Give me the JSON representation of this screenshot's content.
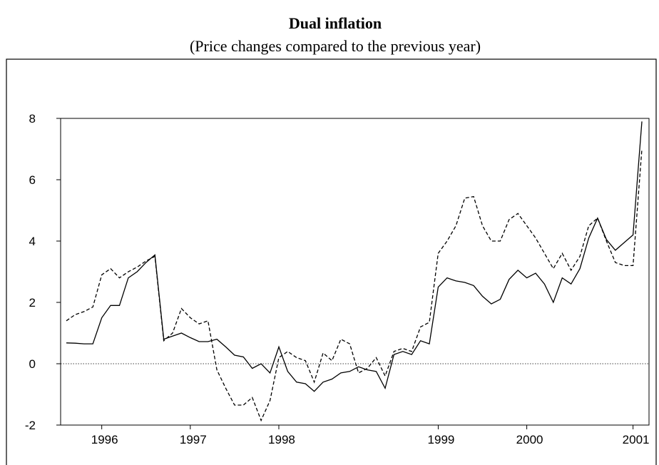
{
  "chart_data": {
    "type": "line",
    "title": "Dual inflation",
    "subtitle": "(Price changes compared to the previous year)",
    "categories": [
      null,
      null,
      null,
      null,
      "1996",
      null,
      null,
      null,
      null,
      null,
      null,
      null,
      null,
      null,
      "1997",
      null,
      null,
      null,
      null,
      null,
      null,
      null,
      null,
      null,
      "1998",
      null,
      null,
      null,
      null,
      null,
      null,
      null,
      null,
      null,
      null,
      null,
      null,
      null,
      null,
      null,
      null,
      null,
      "1999",
      null,
      null,
      null,
      null,
      null,
      null,
      null,
      null,
      null,
      "2000",
      null,
      null,
      null,
      null,
      null,
      null,
      null,
      null,
      null,
      null,
      null,
      "2001",
      null
    ],
    "series": [
      {
        "color": "#000000",
        "dashed": false,
        "values": [
          0.68,
          0.67,
          0.65,
          0.65,
          1.5,
          1.9,
          1.9,
          2.8,
          3.0,
          3.3,
          3.55,
          0.8,
          0.9,
          1.0,
          0.85,
          0.72,
          0.72,
          0.8,
          0.55,
          0.28,
          0.22,
          -0.15,
          0.0,
          -0.3,
          0.55,
          -0.25,
          -0.6,
          -0.65,
          -0.9,
          -0.6,
          -0.5,
          -0.3,
          -0.25,
          -0.1,
          -0.2,
          -0.25,
          -0.8,
          0.3,
          0.4,
          0.3,
          0.75,
          0.65,
          2.5,
          2.8,
          2.7,
          2.65,
          2.55,
          2.2,
          1.95,
          2.1,
          2.75,
          3.05,
          2.8,
          2.95,
          2.6,
          2.0,
          2.8,
          2.6,
          3.1,
          4.1,
          4.75,
          4.05,
          3.7,
          3.95,
          4.2,
          7.9
        ]
      },
      {
        "color": "#000000",
        "dashed": true,
        "values": [
          1.4,
          1.6,
          1.7,
          1.85,
          2.9,
          3.1,
          2.8,
          3.0,
          3.15,
          3.35,
          3.5,
          0.75,
          1.0,
          1.8,
          1.5,
          1.3,
          1.4,
          -0.2,
          -0.8,
          -1.35,
          -1.35,
          -1.1,
          -1.85,
          -1.2,
          0.2,
          0.4,
          0.2,
          0.1,
          -0.6,
          0.35,
          0.1,
          0.8,
          0.65,
          -0.3,
          -0.15,
          0.2,
          -0.4,
          0.4,
          0.5,
          0.4,
          1.2,
          1.35,
          3.6,
          4.0,
          4.5,
          5.4,
          5.45,
          4.5,
          4.0,
          4.0,
          4.7,
          4.9,
          4.5,
          4.1,
          3.6,
          3.1,
          3.6,
          3.05,
          3.5,
          4.5,
          4.75,
          4.0,
          3.3,
          3.2,
          3.2,
          7.0
        ]
      }
    ],
    "ylim": [
      -2,
      8
    ],
    "yticks": [
      -2,
      0,
      2,
      4,
      6,
      8
    ],
    "zero_line": true
  }
}
